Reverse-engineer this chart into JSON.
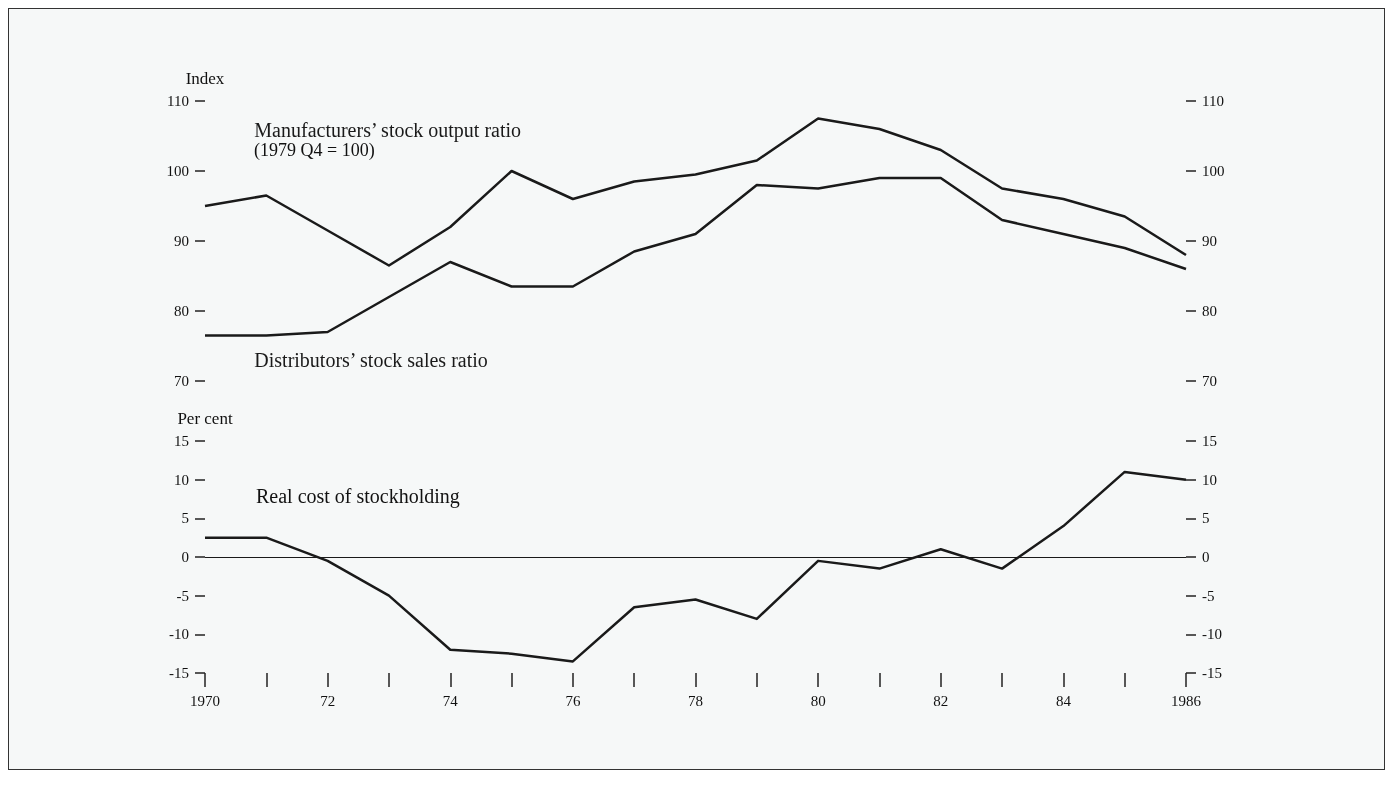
{
  "chart_data": [
    {
      "type": "line",
      "ylabel": "Index",
      "x": [
        1970,
        1971,
        1972,
        1973,
        1974,
        1975,
        1976,
        1977,
        1978,
        1979,
        1980,
        1981,
        1982,
        1983,
        1984,
        1985,
        1986
      ],
      "xlim": [
        1970,
        1986
      ],
      "ylim": [
        70,
        110
      ],
      "yticks": [
        70,
        80,
        90,
        100,
        110
      ],
      "y2lim": [
        70,
        110
      ],
      "y2ticks": [
        70,
        80,
        90,
        100,
        110
      ],
      "tick_labels": "y",
      "grid": false,
      "legend": false,
      "annotations": [
        "(1979 Q4 = 100)"
      ],
      "series": [
        {
          "name": "Manufacturers’ stock output ratio",
          "color": "#1a1a1a",
          "values": [
            95,
            96.5,
            91.5,
            86.5,
            92,
            100,
            96,
            98.5,
            99.5,
            101.5,
            107.5,
            106,
            103,
            97.5,
            96,
            93.5,
            88
          ]
        },
        {
          "name": "Distributors’ stock sales ratio",
          "color": "#1a1a1a",
          "values": [
            76.5,
            76.5,
            77,
            82,
            87,
            83.5,
            83.5,
            88.5,
            91,
            98,
            97.5,
            99,
            99,
            93,
            91,
            89,
            86
          ]
        }
      ]
    },
    {
      "type": "line",
      "ylabel": "Per cent",
      "x": [
        1970,
        1971,
        1972,
        1973,
        1974,
        1975,
        1976,
        1977,
        1978,
        1979,
        1980,
        1981,
        1982,
        1983,
        1984,
        1985,
        1986
      ],
      "xlim": [
        1970,
        1986
      ],
      "xticks": [
        1970,
        {
          "value": 1971,
          "label": null
        },
        {
          "value": 1972,
          "label": "72"
        },
        {
          "value": 1973,
          "label": null
        },
        {
          "value": 1974,
          "label": "74"
        },
        {
          "value": 1975,
          "label": null
        },
        {
          "value": 1976,
          "label": "76"
        },
        {
          "value": 1977,
          "label": null
        },
        {
          "value": 1978,
          "label": "78"
        },
        {
          "value": 1979,
          "label": null
        },
        {
          "value": 1980,
          "label": "80"
        },
        {
          "value": 1981,
          "label": null
        },
        {
          "value": 1982,
          "label": "82"
        },
        {
          "value": 1983,
          "label": null
        },
        {
          "value": 1984,
          "label": "84"
        },
        {
          "value": 1985,
          "label": null
        },
        1986
      ],
      "ylim": [
        -15,
        15
      ],
      "yticks": [
        -15,
        -10,
        -5,
        0,
        5,
        10,
        15
      ],
      "y2lim": [
        -15,
        15
      ],
      "y2ticks": [
        -15,
        -10,
        -5,
        0,
        5,
        10,
        15
      ],
      "grid": false,
      "legend": "top left",
      "ref_lines": [
        {
          "axis": "y",
          "value": 0,
          "color": "#1a1a1a"
        }
      ],
      "series": [
        {
          "name": "Real cost of stockholding",
          "color": "#1a1a1a",
          "values": [
            2.5,
            2.5,
            -0.5,
            -5,
            -12,
            -12.5,
            -13.5,
            -6.5,
            -5.5,
            -8,
            -0.5,
            -1.5,
            1,
            -1.5,
            4,
            11,
            10
          ]
        }
      ]
    }
  ]
}
